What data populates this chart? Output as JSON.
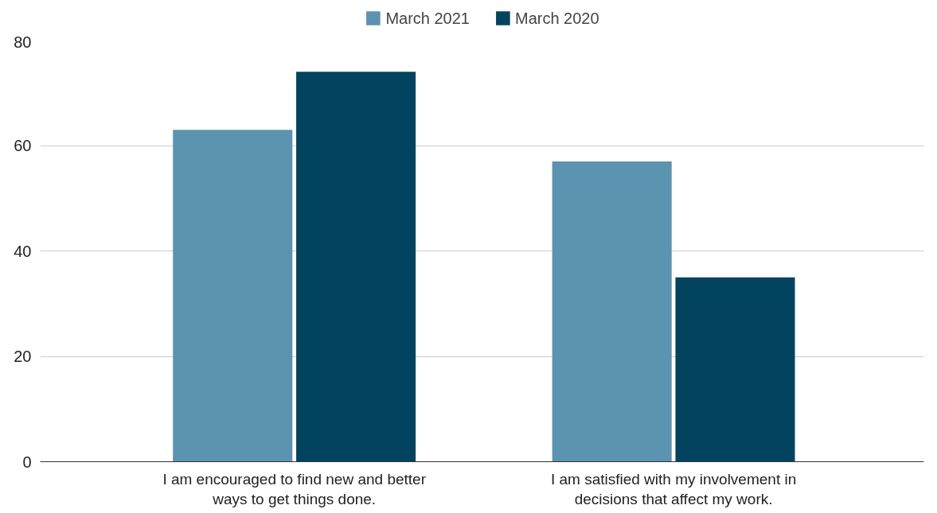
{
  "chart_data": {
    "type": "bar",
    "categories": [
      "I am encouraged to find new and better ways to get things done.",
      "I am satisfied with my involvement in decisions that affect my work."
    ],
    "series": [
      {
        "name": "March 2021",
        "color": "#5b93b0",
        "values": [
          63,
          57
        ]
      },
      {
        "name": "March 2020",
        "color": "#02445f",
        "values": [
          74,
          35
        ]
      }
    ],
    "ylim": [
      0,
      80
    ],
    "yticks": [
      0,
      20,
      40,
      60,
      80
    ],
    "grid": "y",
    "legend": "top"
  }
}
